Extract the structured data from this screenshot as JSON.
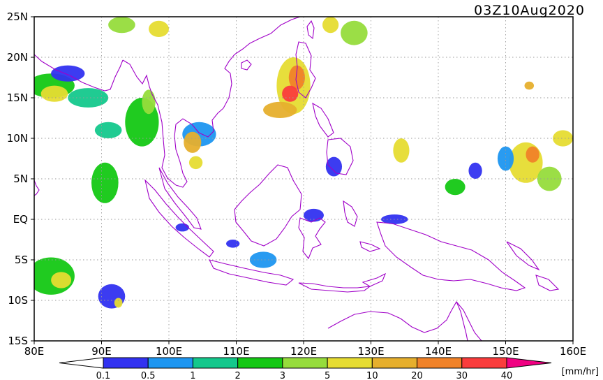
{
  "timestamp": "03Z10Aug2020",
  "unit_label": "[mm/hr]",
  "map": {
    "lon_range": [
      80,
      160
    ],
    "lat_range": [
      -15,
      25
    ],
    "lat_labels": [
      {
        "lat": 25,
        "text": "25N"
      },
      {
        "lat": 20,
        "text": "20N"
      },
      {
        "lat": 15,
        "text": "15N"
      },
      {
        "lat": 10,
        "text": "10N"
      },
      {
        "lat": 5,
        "text": "5N"
      },
      {
        "lat": 0,
        "text": "EQ"
      },
      {
        "lat": -5,
        "text": "5S"
      },
      {
        "lat": -10,
        "text": "10S"
      },
      {
        "lat": -15,
        "text": "15S"
      }
    ],
    "lon_labels": [
      {
        "lon": 80,
        "text": "80E"
      },
      {
        "lon": 90,
        "text": "90E"
      },
      {
        "lon": 100,
        "text": "100E"
      },
      {
        "lon": 110,
        "text": "110E"
      },
      {
        "lon": 120,
        "text": "120E"
      },
      {
        "lon": 130,
        "text": "130E"
      },
      {
        "lon": 140,
        "text": "140E"
      },
      {
        "lon": 150,
        "text": "150E"
      },
      {
        "lon": 160,
        "text": "160E"
      }
    ],
    "grid": "dotted",
    "coast_color": "#a000c8"
  },
  "colorbar": {
    "colors": [
      "#3232f0",
      "#1e96f0",
      "#14c88c",
      "#14c814",
      "#96dc3c",
      "#e6dc32",
      "#e6af2d",
      "#f08228",
      "#fa3c3c",
      "#f00082"
    ],
    "labels": [
      "0.1",
      "0.5",
      "1",
      "2",
      "3",
      "5",
      "10",
      "20",
      "30",
      "40"
    ]
  },
  "precip_cells": [
    {
      "lon": 82.5,
      "lat": 16.5,
      "rx": 3.5,
      "ry": 1.5,
      "level": 3
    },
    {
      "lon": 83,
      "lat": 15.5,
      "rx": 2,
      "ry": 1,
      "level": 5
    },
    {
      "lon": 85,
      "lat": 18,
      "rx": 2.5,
      "ry": 1,
      "level": 0
    },
    {
      "lon": 88,
      "lat": 15,
      "rx": 3,
      "ry": 1.2,
      "level": 2
    },
    {
      "lon": 91,
      "lat": 11,
      "rx": 2,
      "ry": 1,
      "level": 2
    },
    {
      "lon": 96,
      "lat": 12,
      "rx": 2.5,
      "ry": 3,
      "level": 3
    },
    {
      "lon": 97,
      "lat": 14.5,
      "rx": 1,
      "ry": 1.5,
      "level": 4
    },
    {
      "lon": 93,
      "lat": 24,
      "rx": 2,
      "ry": 1,
      "level": 4
    },
    {
      "lon": 98.5,
      "lat": 23.5,
      "rx": 1.5,
      "ry": 1,
      "level": 5
    },
    {
      "lon": 104.5,
      "lat": 10.5,
      "rx": 2.5,
      "ry": 1.5,
      "level": 1
    },
    {
      "lon": 103.5,
      "lat": 9.5,
      "rx": 1.3,
      "ry": 1.3,
      "level": 6
    },
    {
      "lon": 104,
      "lat": 7,
      "rx": 1,
      "ry": 0.8,
      "level": 5
    },
    {
      "lon": 90.5,
      "lat": 4.5,
      "rx": 2,
      "ry": 2.5,
      "level": 3
    },
    {
      "lon": 82.5,
      "lat": -7,
      "rx": 3.5,
      "ry": 2.3,
      "level": 3
    },
    {
      "lon": 84,
      "lat": -7.5,
      "rx": 1.5,
      "ry": 1,
      "level": 5
    },
    {
      "lon": 91.5,
      "lat": -9.5,
      "rx": 2,
      "ry": 1.5,
      "level": 0
    },
    {
      "lon": 92.5,
      "lat": -10.3,
      "rx": 0.6,
      "ry": 0.6,
      "level": 5
    },
    {
      "lon": 118.5,
      "lat": 16.5,
      "rx": 2.5,
      "ry": 3.5,
      "level": 5
    },
    {
      "lon": 119,
      "lat": 17.5,
      "rx": 1.2,
      "ry": 1.5,
      "level": 7
    },
    {
      "lon": 116.5,
      "lat": 13.5,
      "rx": 2.5,
      "ry": 1,
      "level": 6
    },
    {
      "lon": 118,
      "lat": 15.5,
      "rx": 1.2,
      "ry": 1,
      "level": 8
    },
    {
      "lon": 124,
      "lat": 24,
      "rx": 1.2,
      "ry": 1,
      "level": 5
    },
    {
      "lon": 127.5,
      "lat": 23,
      "rx": 2,
      "ry": 1.5,
      "level": 4
    },
    {
      "lon": 124.5,
      "lat": 6.5,
      "rx": 1.2,
      "ry": 1.2,
      "level": 0
    },
    {
      "lon": 121.5,
      "lat": 0.5,
      "rx": 1.5,
      "ry": 0.8,
      "level": 0
    },
    {
      "lon": 134.5,
      "lat": 8.5,
      "rx": 1.2,
      "ry": 1.5,
      "level": 5
    },
    {
      "lon": 142.5,
      "lat": 4,
      "rx": 1.5,
      "ry": 1,
      "level": 3
    },
    {
      "lon": 145.5,
      "lat": 6,
      "rx": 1,
      "ry": 1,
      "level": 0
    },
    {
      "lon": 153,
      "lat": 7,
      "rx": 2.5,
      "ry": 2.5,
      "level": 5
    },
    {
      "lon": 154,
      "lat": 8,
      "rx": 1,
      "ry": 1,
      "level": 7
    },
    {
      "lon": 156.5,
      "lat": 5,
      "rx": 1.8,
      "ry": 1.5,
      "level": 4
    },
    {
      "lon": 158.5,
      "lat": 10,
      "rx": 1.5,
      "ry": 1,
      "level": 5
    },
    {
      "lon": 150,
      "lat": 7.5,
      "rx": 1.2,
      "ry": 1.5,
      "level": 1
    },
    {
      "lon": 153.5,
      "lat": 16.5,
      "rx": 0.7,
      "ry": 0.5,
      "level": 6
    },
    {
      "lon": 133.5,
      "lat": 0,
      "rx": 2,
      "ry": 0.6,
      "level": 0
    },
    {
      "lon": 109.5,
      "lat": -3,
      "rx": 1,
      "ry": 0.5,
      "level": 0
    },
    {
      "lon": 114,
      "lat": -5,
      "rx": 2,
      "ry": 1,
      "level": 1
    },
    {
      "lon": 102,
      "lat": -1,
      "rx": 1,
      "ry": 0.5,
      "level": 0
    }
  ]
}
